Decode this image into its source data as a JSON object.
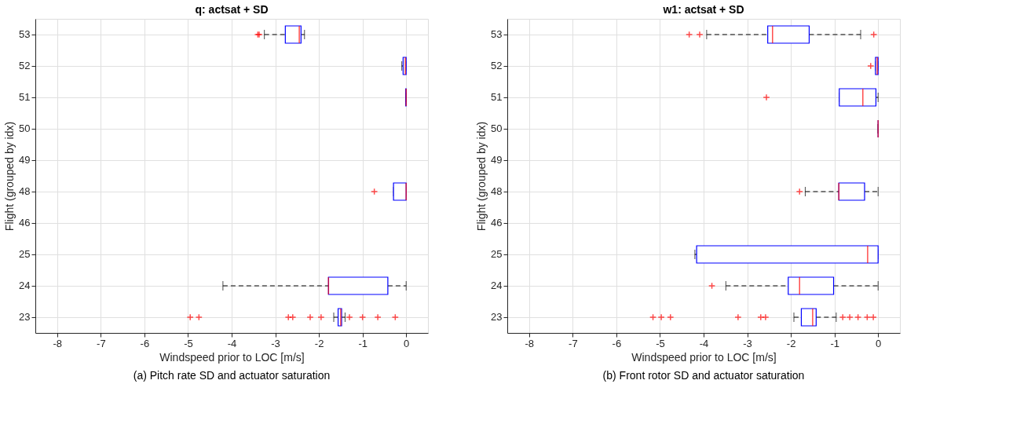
{
  "chart_data": [
    {
      "type": "box",
      "orientation": "horizontal",
      "title": "q: actsat + SD",
      "xlabel": "Windspeed prior to LOC [m/s]",
      "ylabel": "Flight (grouped by idx)",
      "annotations": [
        "(a) Pitch rate SD and actuator saturation"
      ],
      "grid": true,
      "xlim": [
        -8.5,
        0.5
      ],
      "xticks": [
        -8,
        -7,
        -6,
        -5,
        -4,
        -3,
        -2,
        -1,
        0
      ],
      "categories": [
        "53",
        "52",
        "51",
        "50",
        "49",
        "48",
        "46",
        "25",
        "24",
        "23"
      ],
      "boxes": [
        {
          "low": -3.25,
          "q1": -2.77,
          "median": -2.45,
          "q3": -2.41,
          "high": -2.33,
          "outliers": [
            -3.4,
            -3.37
          ]
        },
        {
          "low": -0.1,
          "q1": -0.07,
          "median": -0.02,
          "q3": 0,
          "high": 0
        },
        {
          "low": -0.01,
          "q1": -0.01,
          "median": 0,
          "q3": 0,
          "high": 0
        },
        null,
        null,
        {
          "low": -0.29,
          "q1": -0.29,
          "median": 0,
          "q3": 0,
          "high": 0,
          "outliers": [
            -0.73
          ]
        },
        null,
        null,
        {
          "low": -4.2,
          "q1": -1.78,
          "median": -1.78,
          "q3": -0.42,
          "high": 0
        },
        {
          "low": -1.66,
          "q1": -1.56,
          "median": -1.5,
          "q3": -1.48,
          "high": -1.4,
          "outliers": [
            -4.95,
            -4.75,
            -2.7,
            -2.6,
            -2.2,
            -1.95,
            -1.3,
            -1.0,
            -0.65,
            -0.25
          ]
        }
      ]
    },
    {
      "type": "box",
      "orientation": "horizontal",
      "title": "w1: actsat + SD",
      "xlabel": "Windspeed prior to LOC [m/s]",
      "ylabel": "Flight (grouped by idx)",
      "annotations": [
        "(b) Front rotor SD and actuator saturation"
      ],
      "grid": true,
      "xlim": [
        -8.5,
        0.5
      ],
      "xticks": [
        -8,
        -7,
        -6,
        -5,
        -4,
        -3,
        -2,
        -1,
        0
      ],
      "categories": [
        "53",
        "52",
        "51",
        "50",
        "49",
        "48",
        "46",
        "25",
        "24",
        "23"
      ],
      "boxes": [
        {
          "low": -3.93,
          "q1": -2.53,
          "median": -2.42,
          "q3": -1.58,
          "high": -0.4,
          "outliers": [
            -4.33,
            -4.09,
            -0.1
          ]
        },
        {
          "low": -0.06,
          "q1": -0.06,
          "median": -0.02,
          "q3": 0,
          "high": 0,
          "outliers": [
            -0.17
          ]
        },
        {
          "low": -0.89,
          "q1": -0.89,
          "median": -0.35,
          "q3": -0.05,
          "high": 0,
          "outliers": [
            -2.56
          ]
        },
        {
          "low": 0,
          "q1": 0,
          "median": 0,
          "q3": 0,
          "high": 0
        },
        null,
        {
          "low": -1.67,
          "q1": -0.9,
          "median": -0.9,
          "q3": -0.31,
          "high": 0,
          "outliers": [
            -1.8
          ]
        },
        null,
        {
          "low": -4.2,
          "q1": -4.16,
          "median": -0.24,
          "q3": 0,
          "high": 0
        },
        {
          "low": -3.49,
          "q1": -2.06,
          "median": -1.8,
          "q3": -1.02,
          "high": 0,
          "outliers": [
            -3.81
          ]
        },
        {
          "low": -1.93,
          "q1": -1.76,
          "median": -1.5,
          "q3": -1.42,
          "high": -0.96,
          "outliers": [
            -5.16,
            -4.97,
            -4.76,
            -3.21,
            -2.69,
            -2.58,
            -0.81,
            -0.65,
            -0.46,
            -0.25,
            -0.11
          ]
        }
      ]
    }
  ]
}
